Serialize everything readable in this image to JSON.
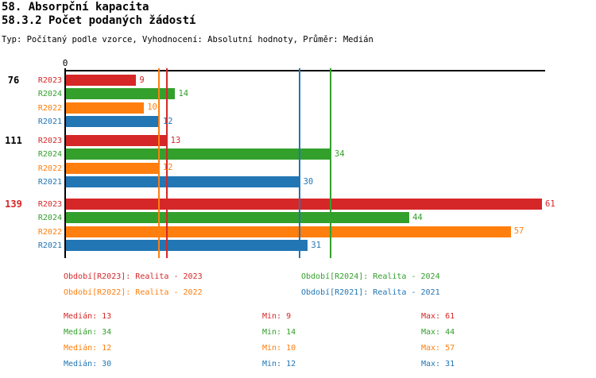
{
  "page": {
    "title": "58. Absorpční kapacita",
    "subtitle": "58.3.2 Počet podaných žádostí",
    "meta": "Typ: Počítaný podle vzorce, Vyhodnocení: Absolutní hodnoty, Průměr: Medián"
  },
  "colors": {
    "red": "#d62728",
    "green": "#33a02c",
    "orange": "#ff7f0e",
    "blue": "#2276b4",
    "axis": "#000000",
    "group_label": "#000000",
    "background": "#ffffff"
  },
  "chart_data": {
    "type": "bar",
    "orientation": "horizontal",
    "value_axis": {
      "origin_label": "0",
      "min": 0,
      "max_visible": 61,
      "position": "top",
      "gridlines": false
    },
    "series": [
      {
        "name": "R2023",
        "color_key": "red"
      },
      {
        "name": "R2024",
        "color_key": "green"
      },
      {
        "name": "R2022",
        "color_key": "orange"
      },
      {
        "name": "R2021",
        "color_key": "blue"
      }
    ],
    "groups": [
      {
        "label": "76",
        "label_color_key": "group_label",
        "values": [
          9,
          14,
          10,
          12
        ]
      },
      {
        "label": "111",
        "label_color_key": "group_label",
        "values": [
          13,
          34,
          12,
          30
        ]
      },
      {
        "label": "139",
        "label_color_key": "red",
        "values": [
          61,
          44,
          57,
          31
        ]
      }
    ],
    "median_lines": [
      {
        "series": "R2022",
        "value": 12,
        "color_key": "orange"
      },
      {
        "series": "R2023",
        "value": 13,
        "color_key": "red"
      },
      {
        "series": "R2021",
        "value": 30,
        "color_key": "blue"
      },
      {
        "series": "R2024",
        "value": 34,
        "color_key": "green"
      }
    ]
  },
  "legend": {
    "items": [
      {
        "label": "Období[R2023]: Realita - 2023",
        "color_key": "red",
        "column": 0,
        "row": 0
      },
      {
        "label": "Období[R2024]: Realita - 2024",
        "color_key": "green",
        "column": 1,
        "row": 0
      },
      {
        "label": "Období[R2022]: Realita - 2022",
        "color_key": "orange",
        "column": 0,
        "row": 1
      },
      {
        "label": "Období[R2021]: Realita - 2021",
        "color_key": "blue",
        "column": 1,
        "row": 1
      }
    ]
  },
  "stats": {
    "rows": [
      {
        "color_key": "red",
        "median": 13,
        "min": 9,
        "max": 61,
        "median_label": "Medián: 13",
        "min_label": "Min: 9",
        "max_label": "Max: 61"
      },
      {
        "color_key": "green",
        "median": 34,
        "min": 14,
        "max": 44,
        "median_label": "Medián: 34",
        "min_label": "Min: 14",
        "max_label": "Max: 44"
      },
      {
        "color_key": "orange",
        "median": 12,
        "min": 10,
        "max": 57,
        "median_label": "Medián: 12",
        "min_label": "Min: 10",
        "max_label": "Max: 57"
      },
      {
        "color_key": "blue",
        "median": 30,
        "min": 12,
        "max": 31,
        "median_label": "Medián: 30",
        "min_label": "Min: 12",
        "max_label": "Max: 31"
      }
    ]
  }
}
